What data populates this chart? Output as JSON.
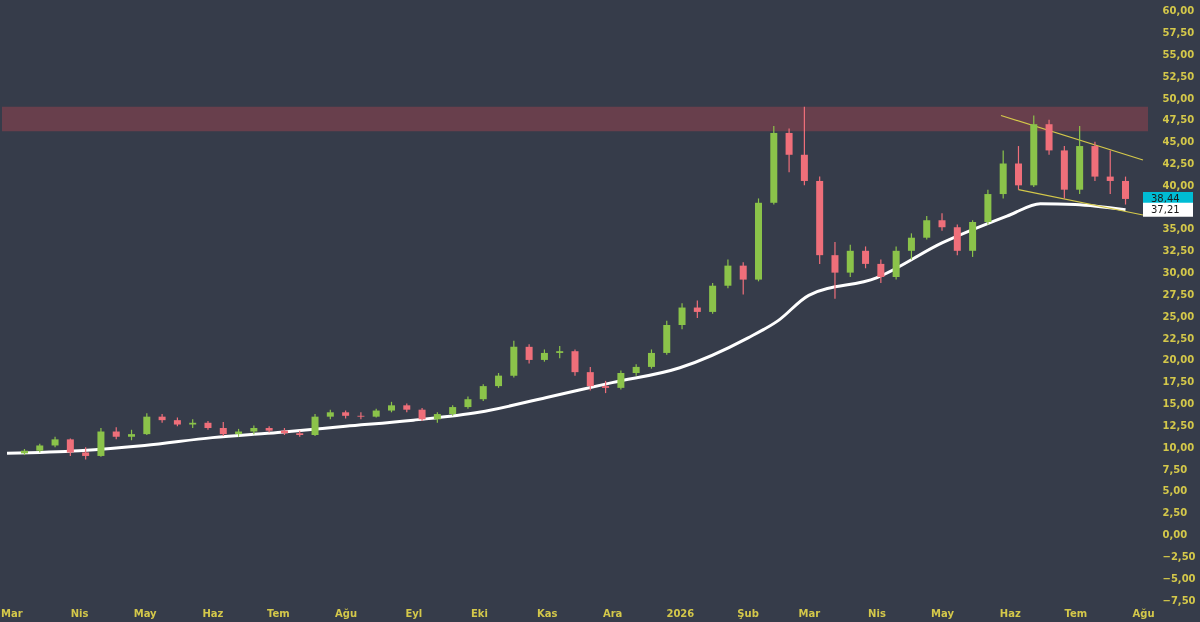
{
  "chart_data": {
    "type": "candlestick",
    "x": [
      "2025-03-07",
      "2025-03-14",
      "2025-03-21",
      "2025-03-28",
      "2025-04-04",
      "2025-04-11",
      "2025-04-18",
      "2025-04-25",
      "2025-05-02",
      "2025-05-09",
      "2025-05-16",
      "2025-05-23",
      "2025-05-30",
      "2025-06-06",
      "2025-06-13",
      "2025-06-20",
      "2025-06-27",
      "2025-07-04",
      "2025-07-11",
      "2025-07-18",
      "2025-07-25",
      "2025-08-01",
      "2025-08-08",
      "2025-08-15",
      "2025-08-22",
      "2025-08-29",
      "2025-09-05",
      "2025-09-12",
      "2025-09-19",
      "2025-09-26",
      "2025-10-03",
      "2025-10-10",
      "2025-10-17",
      "2025-10-24",
      "2025-10-31",
      "2025-11-07",
      "2025-11-14",
      "2025-11-21",
      "2025-11-28",
      "2025-12-05",
      "2025-12-12",
      "2025-12-19",
      "2025-12-26",
      "2026-01-02",
      "2026-01-09",
      "2026-01-16",
      "2026-01-23",
      "2026-01-30",
      "2026-02-06",
      "2026-02-13",
      "2026-02-20",
      "2026-02-27",
      "2026-03-06",
      "2026-03-13",
      "2026-03-20",
      "2026-03-27",
      "2026-04-03",
      "2026-04-10",
      "2026-04-17",
      "2026-04-24",
      "2026-05-01",
      "2026-05-08",
      "2026-05-15",
      "2026-05-22",
      "2026-05-29",
      "2026-06-05",
      "2026-06-12",
      "2026-06-19",
      "2026-06-26",
      "2026-07-03",
      "2026-07-10",
      "2026-07-17",
      "2026-07-24"
    ],
    "ohlc": [
      [
        9.3,
        9.8,
        9.1,
        9.6
      ],
      [
        9.6,
        10.4,
        9.4,
        10.2
      ],
      [
        10.2,
        11.2,
        10.0,
        10.9
      ],
      [
        10.9,
        11.0,
        9.0,
        9.4
      ],
      [
        9.4,
        10.0,
        8.6,
        9.0
      ],
      [
        9.0,
        12.2,
        8.9,
        11.8
      ],
      [
        11.8,
        12.3,
        10.9,
        11.2
      ],
      [
        11.2,
        12.0,
        10.8,
        11.5
      ],
      [
        11.5,
        13.9,
        11.4,
        13.5
      ],
      [
        13.5,
        13.8,
        12.8,
        13.1
      ],
      [
        13.1,
        13.4,
        12.4,
        12.6
      ],
      [
        12.6,
        13.2,
        12.2,
        12.8
      ],
      [
        12.8,
        13.0,
        12.0,
        12.2
      ],
      [
        12.2,
        12.9,
        11.3,
        11.5
      ],
      [
        11.5,
        12.1,
        11.2,
        11.8
      ],
      [
        11.8,
        12.5,
        11.5,
        12.2
      ],
      [
        12.2,
        12.4,
        11.7,
        11.9
      ],
      [
        11.9,
        12.2,
        11.4,
        11.6
      ],
      [
        11.6,
        11.9,
        11.2,
        11.4
      ],
      [
        11.4,
        13.8,
        11.3,
        13.5
      ],
      [
        13.5,
        14.3,
        13.2,
        14.0
      ],
      [
        14.0,
        14.2,
        13.3,
        13.6
      ],
      [
        13.6,
        14.0,
        13.2,
        13.5
      ],
      [
        13.5,
        14.4,
        13.4,
        14.2
      ],
      [
        14.2,
        15.2,
        14.0,
        14.8
      ],
      [
        14.8,
        15.0,
        14.0,
        14.3
      ],
      [
        14.3,
        14.5,
        13.0,
        13.2
      ],
      [
        13.2,
        14.0,
        12.8,
        13.8
      ],
      [
        13.8,
        14.8,
        13.6,
        14.6
      ],
      [
        14.6,
        15.8,
        14.4,
        15.5
      ],
      [
        15.5,
        17.2,
        15.3,
        17.0
      ],
      [
        17.0,
        18.5,
        16.8,
        18.2
      ],
      [
        18.2,
        22.2,
        18.0,
        21.5
      ],
      [
        21.5,
        21.8,
        19.6,
        20.0
      ],
      [
        20.0,
        21.2,
        19.8,
        20.8
      ],
      [
        20.8,
        21.6,
        20.2,
        21.0
      ],
      [
        21.0,
        21.2,
        18.2,
        18.6
      ],
      [
        18.6,
        19.2,
        16.5,
        17.0
      ],
      [
        17.0,
        17.6,
        16.2,
        16.8
      ],
      [
        16.8,
        18.8,
        16.6,
        18.5
      ],
      [
        18.5,
        19.5,
        18.2,
        19.2
      ],
      [
        19.2,
        21.2,
        19.0,
        20.8
      ],
      [
        20.8,
        24.5,
        20.6,
        24.0
      ],
      [
        24.0,
        26.5,
        23.5,
        26.0
      ],
      [
        26.0,
        26.8,
        24.8,
        25.5
      ],
      [
        25.5,
        28.8,
        25.3,
        28.5
      ],
      [
        28.5,
        31.5,
        28.2,
        30.8
      ],
      [
        30.8,
        31.2,
        27.5,
        29.2
      ],
      [
        29.2,
        38.5,
        29.0,
        38.0
      ],
      [
        38.0,
        46.8,
        37.8,
        46.0
      ],
      [
        46.0,
        46.5,
        41.5,
        43.5
      ],
      [
        43.5,
        49.0,
        40.0,
        40.5
      ],
      [
        40.5,
        41.0,
        31.0,
        32.0
      ],
      [
        32.0,
        33.5,
        27.0,
        30.0
      ],
      [
        30.0,
        33.2,
        29.5,
        32.5
      ],
      [
        32.5,
        33.0,
        30.5,
        31.0
      ],
      [
        31.0,
        31.5,
        28.8,
        29.5
      ],
      [
        29.5,
        33.0,
        29.2,
        32.5
      ],
      [
        32.5,
        34.5,
        31.5,
        34.0
      ],
      [
        34.0,
        36.5,
        33.8,
        36.0
      ],
      [
        36.0,
        36.8,
        34.8,
        35.2
      ],
      [
        35.2,
        35.5,
        32.0,
        32.5
      ],
      [
        32.5,
        36.0,
        31.8,
        35.8
      ],
      [
        35.8,
        39.5,
        35.5,
        39.0
      ],
      [
        39.0,
        44.0,
        38.5,
        42.5
      ],
      [
        42.5,
        44.5,
        39.5,
        40.0
      ],
      [
        40.0,
        48.0,
        39.8,
        47.0
      ],
      [
        47.0,
        47.5,
        43.5,
        44.0
      ],
      [
        44.0,
        44.5,
        38.5,
        39.5
      ],
      [
        39.5,
        46.8,
        39.0,
        44.5
      ],
      [
        44.5,
        45.0,
        40.5,
        41.0
      ],
      [
        41.0,
        44.0,
        39.0,
        40.5
      ],
      [
        40.5,
        41.0,
        37.8,
        38.44
      ]
    ],
    "series": [
      {
        "type": "line",
        "color": "#ffffff",
        "x": [
          "2025-02-27",
          "2025-04-01",
          "2025-05-01",
          "2025-06-01",
          "2025-07-01",
          "2025-08-01",
          "2025-09-01",
          "2025-10-01",
          "2025-11-01",
          "2025-12-01",
          "2026-01-01",
          "2026-02-01",
          "2026-02-15",
          "2026-03-01",
          "2026-04-01",
          "2026-05-01",
          "2026-06-01",
          "2026-06-15",
          "2026-07-01",
          "2026-07-24"
        ],
        "values": [
          9.3,
          9.6,
          10.2,
          11.1,
          11.7,
          12.4,
          13.1,
          14.0,
          15.7,
          17.4,
          19.1,
          22.5,
          24.5,
          27.4,
          29.4,
          33.4,
          36.6,
          37.9,
          37.8,
          37.21
        ]
      },
      {
        "type": "line",
        "color": "#d4c84a",
        "x": [
          "2026-05-28",
          "2026-08-01"
        ],
        "values": [
          48.0,
          42.9
        ]
      },
      {
        "type": "line",
        "color": "#d4c84a",
        "x": [
          "2026-06-05",
          "2026-08-01"
        ],
        "values": [
          39.5,
          36.6
        ]
      }
    ],
    "bands": [
      {
        "axis": "y",
        "from": 46.2,
        "to": 49.0,
        "color": "#6e3f4c"
      }
    ],
    "annotations": [
      "38,44",
      "37,21"
    ],
    "xlim": [
      "2025-02-27",
      "2026-08-01"
    ],
    "xticks": [
      {
        "value": "2025-03-01",
        "label": "Mar"
      },
      {
        "value": "2025-04-01",
        "label": "Nis"
      },
      {
        "value": "2025-05-01",
        "label": "May"
      },
      {
        "value": "2025-06-01",
        "label": "Haz"
      },
      {
        "value": "2025-07-01",
        "label": "Tem"
      },
      {
        "value": "2025-08-01",
        "label": "Ağu"
      },
      {
        "value": "2025-09-01",
        "label": "Eyl"
      },
      {
        "value": "2025-10-01",
        "label": "Eki"
      },
      {
        "value": "2025-11-01",
        "label": "Kas"
      },
      {
        "value": "2025-12-01",
        "label": "Ara"
      },
      {
        "value": "2026-01-01",
        "label": "2026"
      },
      {
        "value": "2026-02-01",
        "label": "Şub"
      },
      {
        "value": "2026-03-01",
        "label": "Mar"
      },
      {
        "value": "2026-04-01",
        "label": "Nis"
      },
      {
        "value": "2026-05-01",
        "label": "May"
      },
      {
        "value": "2026-06-01",
        "label": "Haz"
      },
      {
        "value": "2026-07-01",
        "label": "Tem"
      },
      {
        "value": "2026-08-01",
        "label": "Ağu"
      }
    ],
    "ylim": [
      -7.5,
      61.0
    ],
    "yticks": [
      {
        "value": -7.5,
        "label": "−7,50"
      },
      {
        "value": -5,
        "label": "−5,00"
      },
      {
        "value": -2.5,
        "label": "−2,50"
      },
      {
        "value": 0,
        "label": "0,00"
      },
      {
        "value": 2.5,
        "label": "2,50"
      },
      {
        "value": 5,
        "label": "5,00"
      },
      {
        "value": 7.5,
        "label": "7,50"
      },
      {
        "value": 10,
        "label": "10,00"
      },
      {
        "value": 12.5,
        "label": "12,50"
      },
      {
        "value": 15,
        "label": "15,00"
      },
      {
        "value": 17.5,
        "label": "17,50"
      },
      {
        "value": 20,
        "label": "20,00"
      },
      {
        "value": 22.5,
        "label": "22,50"
      },
      {
        "value": 25,
        "label": "25,00"
      },
      {
        "value": 27.5,
        "label": "27,50"
      },
      {
        "value": 30,
        "label": "30,00"
      },
      {
        "value": 32.5,
        "label": "32,50"
      },
      {
        "value": 35,
        "label": "35,00"
      },
      {
        "value": 40,
        "label": "40,00"
      },
      {
        "value": 42.5,
        "label": "42,50"
      },
      {
        "value": 45,
        "label": "45,00"
      },
      {
        "value": 47.5,
        "label": "47,50"
      },
      {
        "value": 50,
        "label": "50,00"
      },
      {
        "value": 52.5,
        "label": "52,50"
      },
      {
        "value": 55,
        "label": "55,00"
      },
      {
        "value": 57.5,
        "label": "57,50"
      },
      {
        "value": 60,
        "label": "60,00"
      }
    ],
    "grid": false
  }
}
